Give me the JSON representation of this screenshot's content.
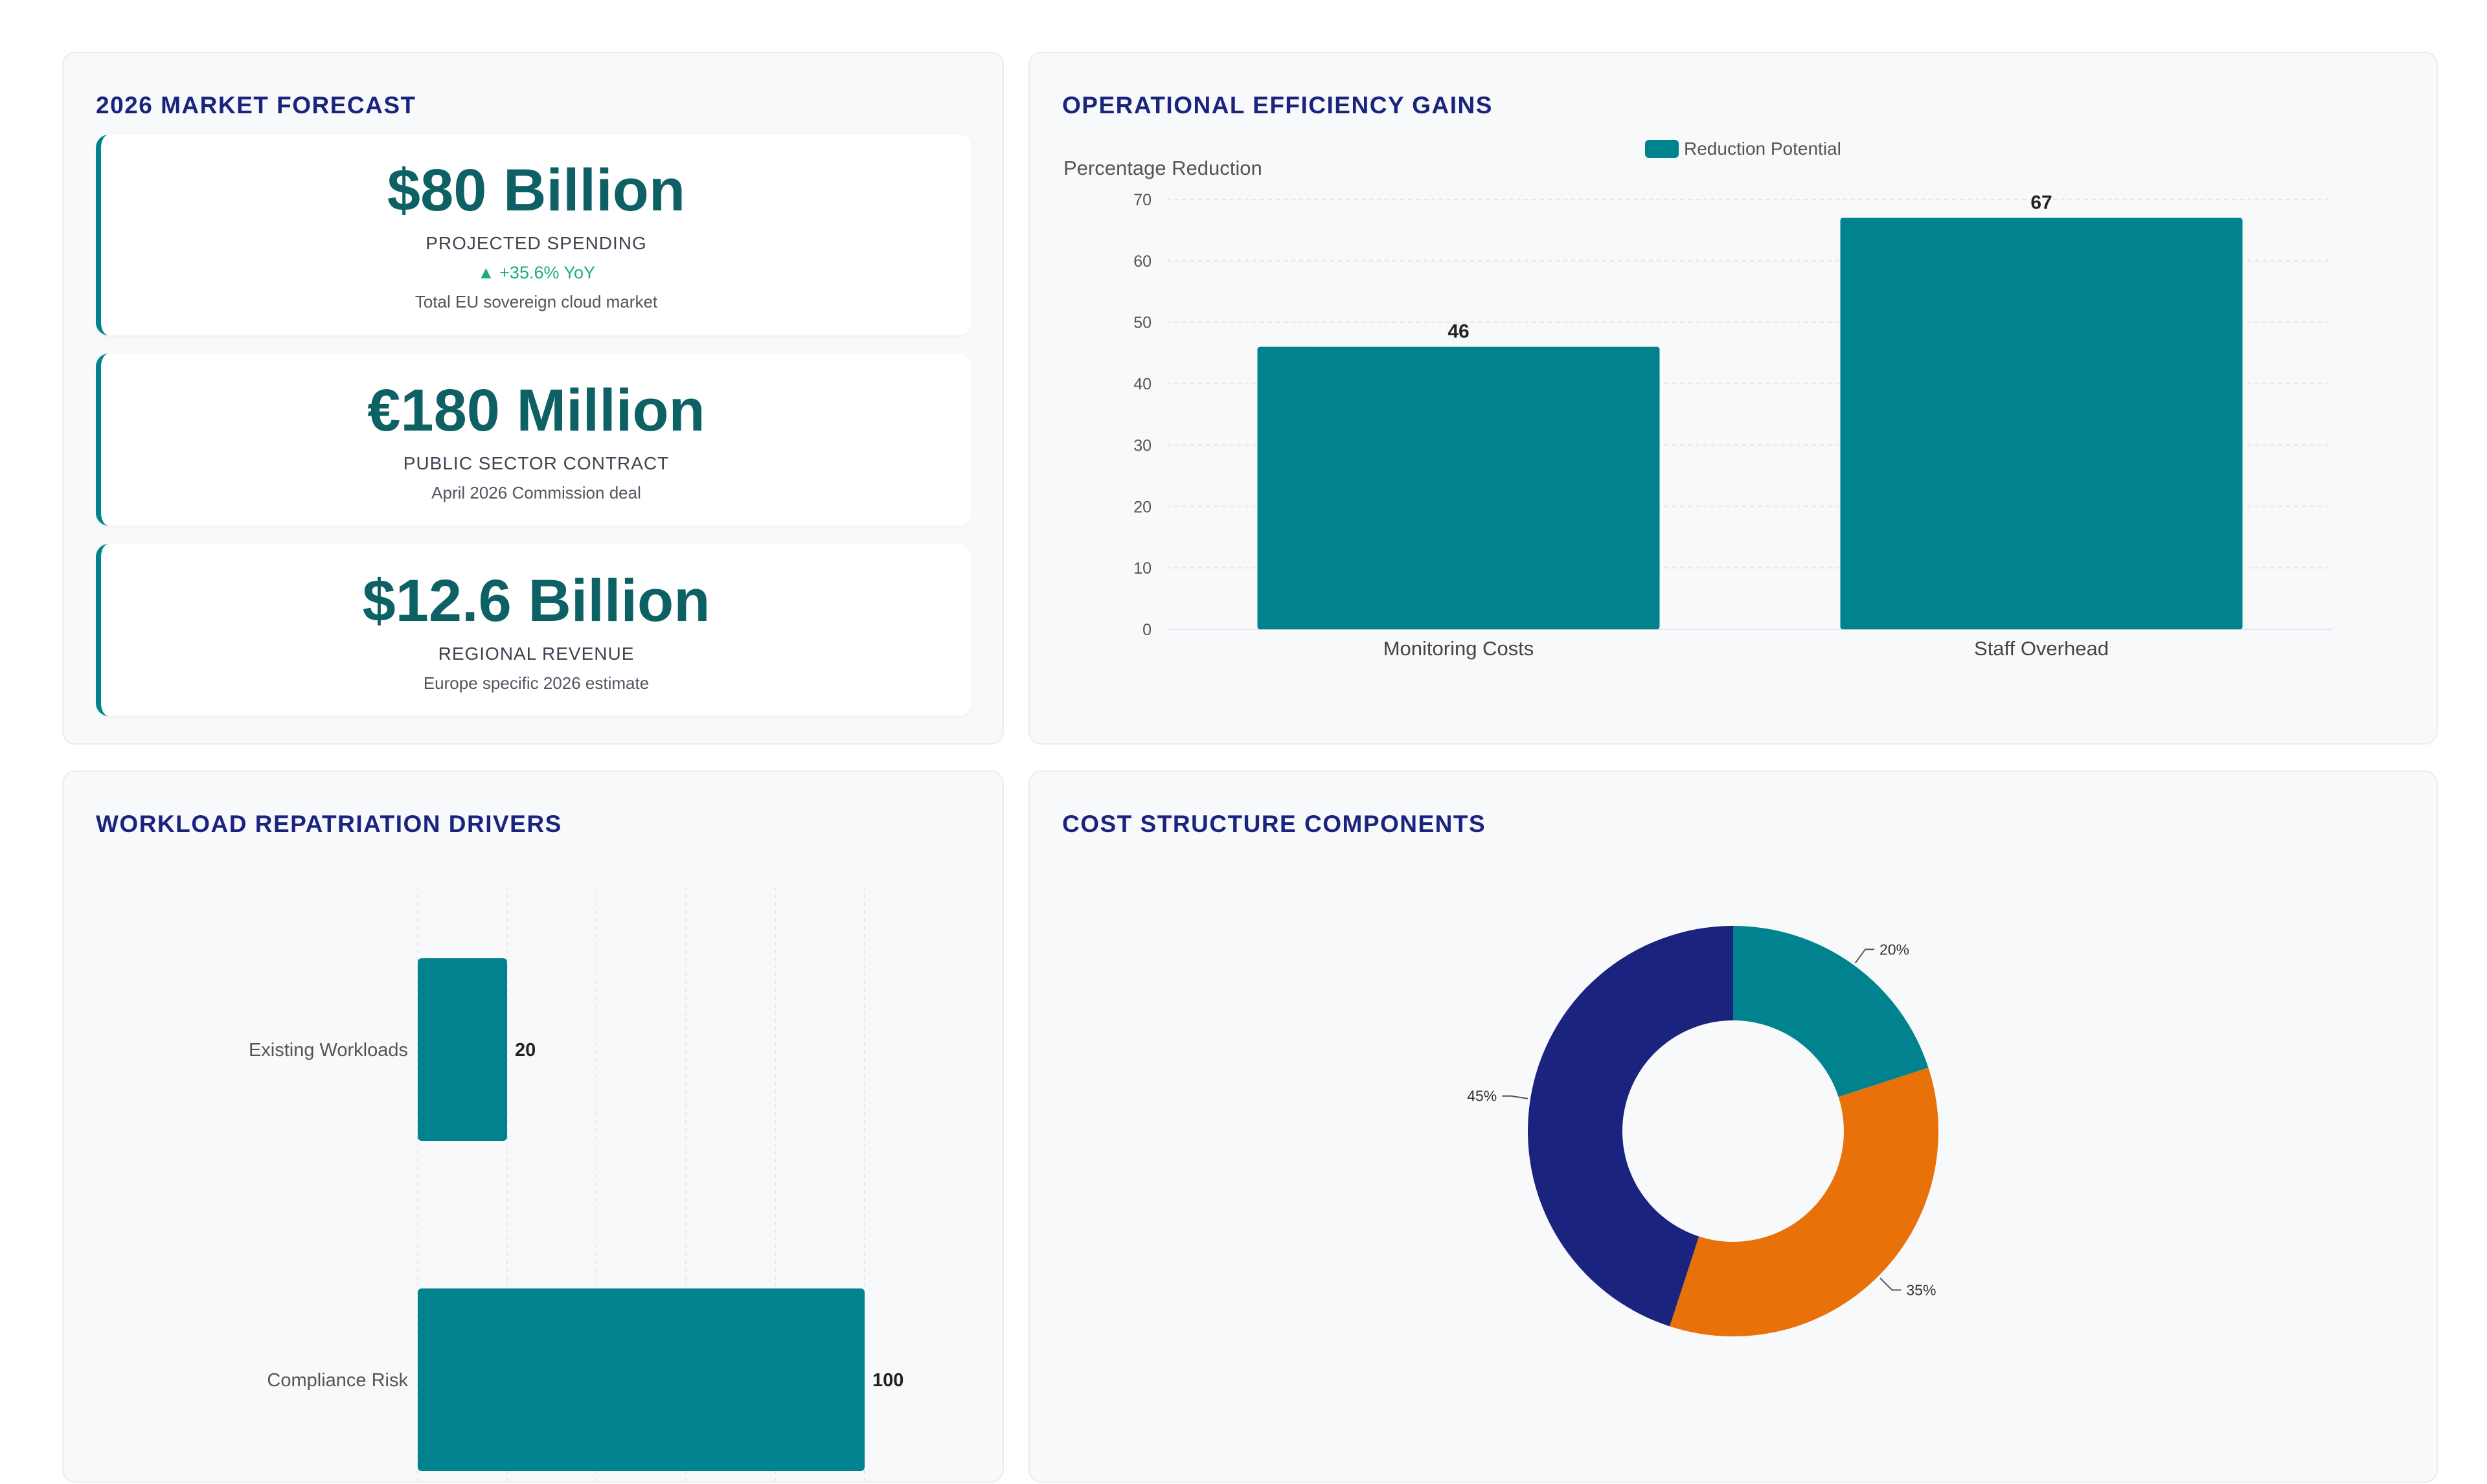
{
  "market": {
    "title": "2026 MARKET FORECAST",
    "cards": [
      {
        "value": "$80 Billion",
        "label": "PROJECTED SPENDING",
        "trend": "▲ +35.6% YoY",
        "note": "Total EU sovereign cloud market"
      },
      {
        "value": "€180 Million",
        "label": "PUBLIC SECTOR CONTRACT",
        "note": "April 2026 Commission deal"
      },
      {
        "value": "$12.6 Billion",
        "label": "REGIONAL REVENUE",
        "note": "Europe specific 2026 estimate"
      }
    ]
  },
  "efficiency": {
    "title": "OPERATIONAL EFFICIENCY GAINS",
    "chart_data": {
      "type": "bar",
      "categories": [
        "Monitoring Costs",
        "Staff Overhead"
      ],
      "series": [
        {
          "name": "Reduction Potential",
          "values": [
            46,
            67
          ]
        }
      ],
      "ylabel": "Percentage Reduction",
      "ylim": [
        0,
        70
      ],
      "yticks": [
        0,
        10,
        20,
        30,
        40,
        50,
        60,
        70
      ],
      "grid": true,
      "legend": "top-center",
      "color": "#00838f"
    }
  },
  "repatriation": {
    "title": "WORKLOAD REPATRIATION DRIVERS",
    "chart_data": {
      "type": "bar",
      "orientation": "horizontal",
      "categories": [
        "Existing Workloads",
        "Compliance Risk"
      ],
      "values": [
        20,
        100
      ],
      "grid": true,
      "color": "#00838f"
    }
  },
  "cost": {
    "title": "COST STRUCTURE COMPONENTS",
    "chart_data": {
      "type": "pie",
      "donut": true,
      "values": [
        20,
        35,
        45
      ],
      "labels": [
        "20%",
        "35%",
        "45%"
      ],
      "colors": [
        "#00838f",
        "#e8710a",
        "#1a237e"
      ]
    }
  }
}
